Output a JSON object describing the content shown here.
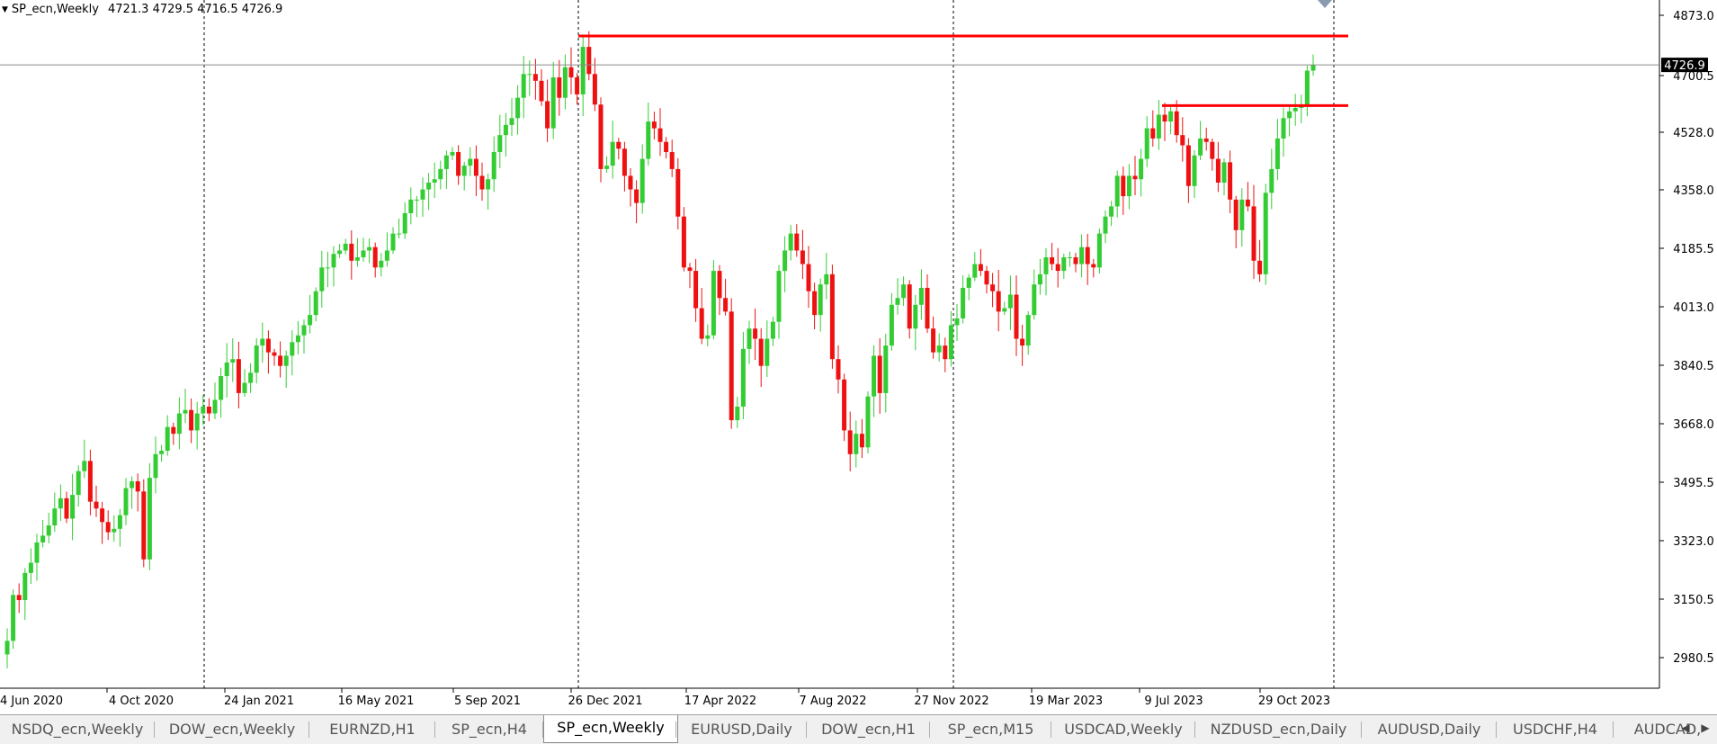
{
  "header": {
    "symbol": "SP_ecn,Weekly",
    "ohlc": "4721.3 4729.5 4716.5 4726.9"
  },
  "current_price": "4726.9",
  "colors": {
    "bull": "#33cc33",
    "bear": "#ee1111",
    "line": "#ff0000",
    "price_tag_bg": "#000000"
  },
  "chart_data": {
    "type": "candlestick",
    "y_ticks": [
      "4873.0",
      "4700.5",
      "4528.0",
      "4358.0",
      "4185.5",
      "4013.0",
      "3840.5",
      "3668.0",
      "3495.5",
      "3323.0",
      "3150.5",
      "2980.5"
    ],
    "x_ticks": [
      "4 Jun 2020",
      "4 Oct 2020",
      "24 Jan 2021",
      "16 May 2021",
      "5 Sep 2021",
      "26 Dec 2021",
      "17 Apr 2022",
      "7 Aug 2022",
      "27 Nov 2022",
      "19 Mar 2023",
      "9 Jul 2023",
      "29 Oct 2023"
    ],
    "ylim": [
      2890,
      4900
    ],
    "horizontal_lines": [
      4812,
      4607
    ],
    "vertical_separators": [
      "Dec 2020",
      "26 Dec 2021",
      "27 Nov 2022",
      "Dec 2023"
    ],
    "closes": [
      3030,
      3165,
      3150,
      3230,
      3260,
      3320,
      3340,
      3370,
      3420,
      3450,
      3390,
      3460,
      3530,
      3560,
      3440,
      3420,
      3380,
      3350,
      3360,
      3400,
      3480,
      3500,
      3470,
      3270,
      3510,
      3580,
      3590,
      3660,
      3640,
      3700,
      3710,
      3650,
      3700,
      3720,
      3700,
      3740,
      3810,
      3850,
      3860,
      3760,
      3790,
      3820,
      3900,
      3920,
      3880,
      3870,
      3840,
      3870,
      3910,
      3930,
      3960,
      3990,
      4060,
      4130,
      4130,
      4170,
      4180,
      4200,
      4150,
      4160,
      4180,
      4190,
      4130,
      4150,
      4180,
      4230,
      4230,
      4290,
      4330,
      4330,
      4360,
      4380,
      4390,
      4420,
      4460,
      4470,
      4400,
      4430,
      4450,
      4400,
      4360,
      4390,
      4470,
      4520,
      4550,
      4570,
      4630,
      4700,
      4700,
      4680,
      4620,
      4540,
      4690,
      4630,
      4720,
      4690,
      4640,
      4780,
      4700,
      4610,
      4420,
      4430,
      4500,
      4480,
      4400,
      4360,
      4320,
      4450,
      4560,
      4540,
      4500,
      4470,
      4420,
      4280,
      4130,
      4120,
      4010,
      3920,
      3930,
      4120,
      4040,
      4000,
      3680,
      3720,
      3890,
      3950,
      3920,
      3840,
      3920,
      3970,
      4120,
      4180,
      4230,
      4180,
      4140,
      4060,
      3990,
      4080,
      4110,
      3860,
      3800,
      3650,
      3580,
      3640,
      3600,
      3750,
      3870,
      3760,
      3900,
      4020,
      4040,
      4080,
      3950,
      4020,
      4070,
      3950,
      3880,
      3900,
      3860,
      3960,
      3980,
      4070,
      4100,
      4140,
      4120,
      4080,
      4060,
      4000,
      4010,
      4050,
      3920,
      3900,
      3990,
      4080,
      4110,
      4160,
      4140,
      4120,
      4160,
      4160,
      4140,
      4190,
      4140,
      4130,
      4230,
      4280,
      4310,
      4400,
      4340,
      4400,
      4390,
      4450,
      4540,
      4510,
      4580,
      4560,
      4590,
      4520,
      4490,
      4370,
      4460,
      4510,
      4500,
      4450,
      4380,
      4440,
      4330,
      4240,
      4330,
      4310,
      4150,
      4110,
      4350,
      4420,
      4510,
      4570,
      4590,
      4600,
      4610,
      4710,
      4726.9
    ]
  },
  "tabs": [
    {
      "label": "NSDQ_ecn,Weekly"
    },
    {
      "label": "DOW_ecn,Weekly"
    },
    {
      "label": "EURNZD,H1"
    },
    {
      "label": "SP_ecn,H4"
    },
    {
      "label": "SP_ecn,Weekly"
    },
    {
      "label": "EURUSD,Daily"
    },
    {
      "label": "DOW_ecn,H1"
    },
    {
      "label": "SP_ecn,M15"
    },
    {
      "label": "USDCAD,Weekly"
    },
    {
      "label": "NZDUSD_ecn,Daily"
    },
    {
      "label": "AUDUSD,Daily"
    },
    {
      "label": "USDCHF,H4"
    },
    {
      "label": "AUDCAD,"
    }
  ],
  "active_tab": 4,
  "scroll": {
    "left": "◀",
    "right": "▶"
  }
}
